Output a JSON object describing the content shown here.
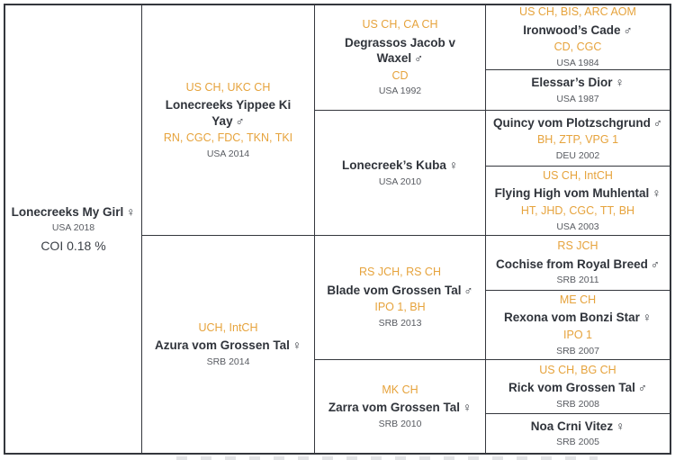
{
  "colors": {
    "title_orange": "#e6a33c",
    "name_dark": "#30343b",
    "meta_gray": "#585b61",
    "grid_line": "#34373d"
  },
  "ancestors": {
    "root": {
      "name": "Lonecreeks My Girl",
      "sex": "♀",
      "origin": "USA 2018",
      "coi": "COI 0.18 %"
    },
    "sire": {
      "pre": "US CH, UKC CH",
      "name": "Lonecreeks Yippee Ki Yay",
      "sex": "♂",
      "post": "RN, CGC, FDC, TKN, TKI",
      "origin": "USA 2014"
    },
    "dam": {
      "pre": "UCH, IntCH",
      "name": "Azura vom Grossen Tal",
      "sex": "♀",
      "origin": "SRB 2014"
    },
    "ss": {
      "pre": "US CH, CA CH",
      "name": "Degrassos Jacob v Waxel",
      "sex": "♂",
      "post": "CD",
      "origin": "USA 1992"
    },
    "sd": {
      "name": "Lonecreek’s Kuba",
      "sex": "♀",
      "origin": "USA 2010"
    },
    "ds": {
      "pre": "RS JCH, RS CH",
      "name": "Blade vom Grossen Tal",
      "sex": "♂",
      "post": "IPO 1, BH",
      "origin": "SRB 2013"
    },
    "dd": {
      "pre": "MK CH",
      "name": "Zarra vom Grossen Tal",
      "sex": "♀",
      "origin": "SRB 2010"
    },
    "sss": {
      "pre": "US CH, BIS, ARC AOM",
      "name": "Ironwood’s Cade",
      "sex": "♂",
      "post": "CD, CGC",
      "origin": "USA 1984"
    },
    "ssd": {
      "name": "Elessar’s Dior",
      "sex": "♀",
      "origin": "USA 1987"
    },
    "sds": {
      "name": "Quincy vom Plotzschgrund",
      "sex": "♂",
      "post": "BH, ZTP, VPG 1",
      "origin": "DEU 2002"
    },
    "sdd": {
      "pre": "US CH, IntCH",
      "name": "Flying High vom Muhlental",
      "sex": "♀",
      "post": "HT, JHD, CGC, TT, BH",
      "origin": "USA 2003"
    },
    "dss": {
      "pre": "RS JCH",
      "name": "Cochise from Royal Breed",
      "sex": "♂",
      "origin": "SRB 2011"
    },
    "dsd": {
      "pre": "ME CH",
      "name": "Rexona vom Bonzi Star",
      "sex": "♀",
      "post": "IPO 1",
      "origin": "SRB 2007"
    },
    "dds": {
      "pre": "US CH, BG CH",
      "name": "Rick vom Grossen Tal",
      "sex": "♂",
      "origin": "SRB 2008"
    },
    "ddd": {
      "name": "Noa Crni Vitez",
      "sex": "♀",
      "origin": "SRB 2005"
    }
  }
}
